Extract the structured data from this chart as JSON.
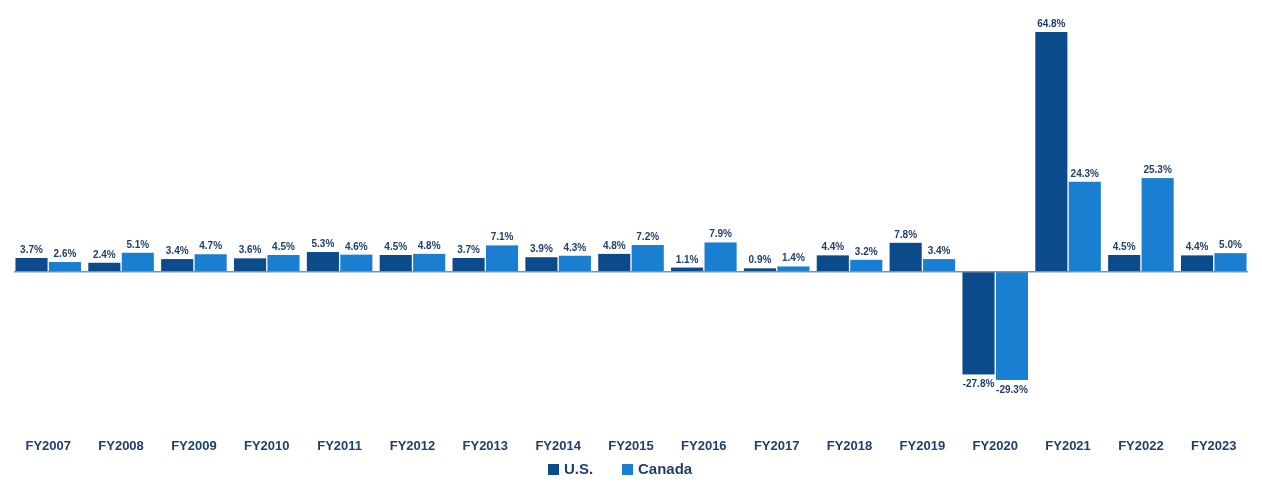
{
  "chart_data": {
    "type": "bar",
    "categories": [
      "FY2007",
      "FY2008",
      "FY2009",
      "FY2010",
      "FY2011",
      "FY2012",
      "FY2013",
      "FY2014",
      "FY2015",
      "FY2016",
      "FY2017",
      "FY2018",
      "FY2019",
      "FY2020",
      "FY2021",
      "FY2022",
      "FY2023"
    ],
    "series": [
      {
        "name": "U.S.",
        "color": "#0b4a8b",
        "values": [
          3.7,
          2.4,
          3.4,
          3.6,
          5.3,
          4.5,
          3.7,
          3.9,
          4.8,
          1.1,
          0.9,
          4.4,
          7.8,
          -27.8,
          64.8,
          4.5,
          4.4
        ],
        "value_labels": [
          "3.7%",
          "2.4%",
          "3.4%",
          "3.6%",
          "5.3%",
          "4.5%",
          "3.7%",
          "3.9%",
          "4.8%",
          "1.1%",
          "0.9%",
          "4.4%",
          "7.8%",
          "-27.8%",
          "64.8%",
          "4.5%",
          "4.4%"
        ]
      },
      {
        "name": "Canada",
        "color": "#1a7fd0",
        "values": [
          2.6,
          5.1,
          4.7,
          4.5,
          4.6,
          4.8,
          7.1,
          4.3,
          7.2,
          7.9,
          1.4,
          3.2,
          3.4,
          -29.3,
          24.3,
          25.3,
          5.0
        ],
        "value_labels": [
          "2.6%",
          "5.1%",
          "4.7%",
          "4.5%",
          "4.6%",
          "4.8%",
          "7.1%",
          "4.3%",
          "7.2%",
          "7.9%",
          "1.4%",
          "3.2%",
          "3.4%",
          "-29.3%",
          "24.3%",
          "25.3%",
          "5.0%"
        ]
      }
    ],
    "legend": "bottom"
  }
}
